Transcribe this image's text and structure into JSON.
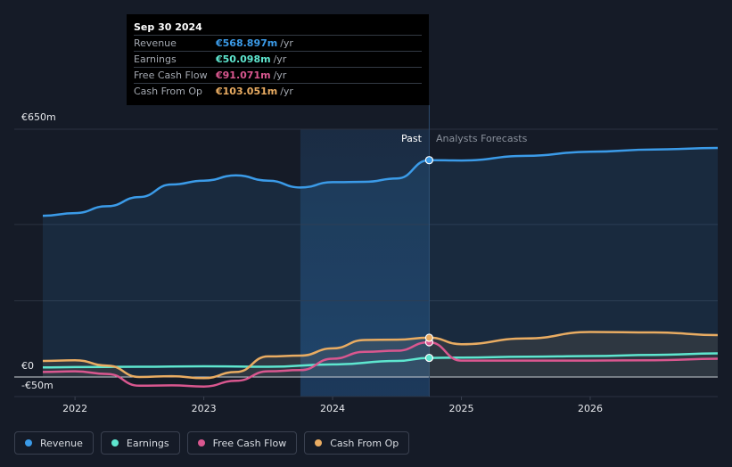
{
  "tooltip": {
    "date": "Sep 30 2024",
    "rows": [
      {
        "label": "Revenue",
        "value": "€568.897m",
        "unit": "/yr",
        "color": "#3b9be8"
      },
      {
        "label": "Earnings",
        "value": "€50.098m",
        "unit": "/yr",
        "color": "#5ee6cf"
      },
      {
        "label": "Free Cash Flow",
        "value": "€91.071m",
        "unit": "/yr",
        "color": "#d9578f"
      },
      {
        "label": "Cash From Op",
        "value": "€103.051m",
        "unit": "/yr",
        "color": "#e9ac62"
      }
    ]
  },
  "labels": {
    "y_top": "€650m",
    "y_zero": "€0",
    "y_bottom": "-€50m",
    "past": "Past",
    "forecast": "Analysts Forecasts"
  },
  "legend": [
    {
      "label": "Revenue",
      "color": "#3b9be8"
    },
    {
      "label": "Earnings",
      "color": "#5ee6cf"
    },
    {
      "label": "Free Cash Flow",
      "color": "#d9578f"
    },
    {
      "label": "Cash From Op",
      "color": "#e9ac62"
    }
  ],
  "chart_data": {
    "type": "line",
    "ylim": [
      -50,
      650
    ],
    "xlim": [
      2021.75,
      2026.99
    ],
    "x_ticks": [
      2022,
      2023,
      2024,
      2025,
      2026
    ],
    "x_tick_labels": [
      "2022",
      "2023",
      "2024",
      "2025",
      "2026"
    ],
    "current_x": 2024.75,
    "highlight_from": 2023.75,
    "grid": true,
    "series": [
      {
        "name": "Revenue",
        "color": "#3b9be8",
        "fill": true,
        "points": [
          [
            2021.75,
            423
          ],
          [
            2022.0,
            430
          ],
          [
            2022.25,
            448
          ],
          [
            2022.5,
            472
          ],
          [
            2022.75,
            505
          ],
          [
            2023.0,
            515
          ],
          [
            2023.25,
            529
          ],
          [
            2023.5,
            515
          ],
          [
            2023.75,
            497
          ],
          [
            2024.0,
            511
          ],
          [
            2024.25,
            512
          ],
          [
            2024.5,
            521
          ],
          [
            2024.75,
            568.9
          ]
        ],
        "forecast": [
          [
            2024.75,
            568.9
          ],
          [
            2025.0,
            568
          ],
          [
            2025.5,
            580
          ],
          [
            2026.0,
            591
          ],
          [
            2026.5,
            597
          ],
          [
            2026.99,
            601
          ]
        ]
      },
      {
        "name": "Earnings",
        "color": "#5ee6cf",
        "fill": false,
        "points": [
          [
            2021.75,
            25
          ],
          [
            2022.0,
            26
          ],
          [
            2022.5,
            27
          ],
          [
            2023.0,
            28
          ],
          [
            2023.5,
            27
          ],
          [
            2024.0,
            33
          ],
          [
            2024.5,
            42
          ],
          [
            2024.75,
            50.1
          ]
        ],
        "forecast": [
          [
            2024.75,
            50.1
          ],
          [
            2025.0,
            51
          ],
          [
            2025.5,
            53
          ],
          [
            2026.0,
            55
          ],
          [
            2026.5,
            58
          ],
          [
            2026.99,
            62
          ]
        ]
      },
      {
        "name": "Free Cash Flow",
        "color": "#d9578f",
        "fill": false,
        "points": [
          [
            2021.75,
            13
          ],
          [
            2022.0,
            15
          ],
          [
            2022.25,
            8
          ],
          [
            2022.5,
            -23
          ],
          [
            2022.75,
            -22
          ],
          [
            2023.0,
            -25
          ],
          [
            2023.25,
            -10
          ],
          [
            2023.5,
            15
          ],
          [
            2023.75,
            18
          ],
          [
            2024.0,
            48
          ],
          [
            2024.25,
            66
          ],
          [
            2024.5,
            69
          ],
          [
            2024.75,
            91.1
          ]
        ],
        "forecast": [
          [
            2024.75,
            91.1
          ],
          [
            2025.0,
            43
          ],
          [
            2025.5,
            43
          ],
          [
            2026.0,
            43
          ],
          [
            2026.5,
            44
          ],
          [
            2026.99,
            48
          ]
        ]
      },
      {
        "name": "Cash From Op",
        "color": "#e9ac62",
        "fill": true,
        "points": [
          [
            2021.75,
            42
          ],
          [
            2022.0,
            44
          ],
          [
            2022.25,
            30
          ],
          [
            2022.5,
            0
          ],
          [
            2022.75,
            2
          ],
          [
            2023.0,
            -3
          ],
          [
            2023.25,
            13
          ],
          [
            2023.5,
            54
          ],
          [
            2023.75,
            56
          ],
          [
            2024.0,
            75
          ],
          [
            2024.25,
            97
          ],
          [
            2024.5,
            98
          ],
          [
            2024.75,
            103
          ]
        ],
        "forecast": [
          [
            2024.75,
            103
          ],
          [
            2025.0,
            86
          ],
          [
            2025.5,
            101
          ],
          [
            2026.0,
            118
          ],
          [
            2026.5,
            117
          ],
          [
            2026.99,
            110
          ]
        ]
      }
    ]
  }
}
